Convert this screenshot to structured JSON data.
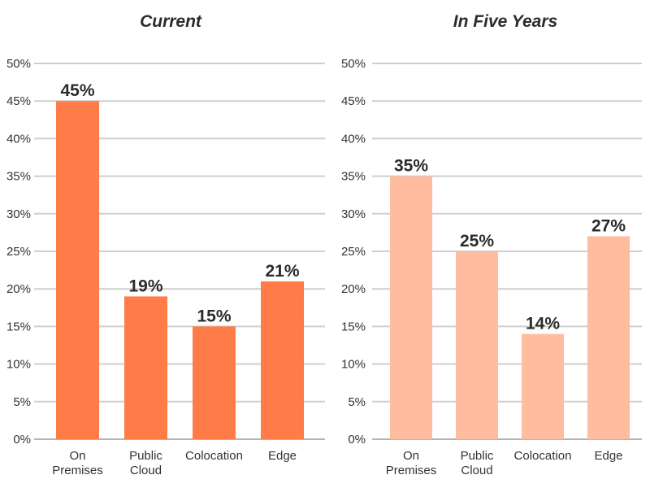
{
  "chart_data": [
    {
      "type": "bar",
      "title": "Current",
      "categories": [
        [
          "On",
          "Premises"
        ],
        [
          "Public",
          "Cloud"
        ],
        [
          "Colocation"
        ],
        [
          "Edge"
        ]
      ],
      "values": [
        45,
        19,
        15,
        21
      ],
      "value_labels": [
        "45%",
        "19%",
        "15%",
        "21%"
      ],
      "ylim": [
        0,
        50
      ],
      "yticks": [
        0,
        5,
        10,
        15,
        20,
        25,
        30,
        35,
        40,
        45,
        50
      ],
      "ytick_labels": [
        "0%",
        "5%",
        "10%",
        "15%",
        "20%",
        "25%",
        "30%",
        "35%",
        "40%",
        "45%",
        "50%"
      ],
      "color": "#ff7b47",
      "grid": true,
      "xlabel": "",
      "ylabel": ""
    },
    {
      "type": "bar",
      "title": "In Five Years",
      "categories": [
        [
          "On",
          "Premises"
        ],
        [
          "Public",
          "Cloud"
        ],
        [
          "Colocation"
        ],
        [
          "Edge"
        ]
      ],
      "values": [
        35,
        25,
        14,
        27
      ],
      "value_labels": [
        "35%",
        "25%",
        "14%",
        "27%"
      ],
      "ylim": [
        0,
        50
      ],
      "yticks": [
        0,
        5,
        10,
        15,
        20,
        25,
        30,
        35,
        40,
        45,
        50
      ],
      "ytick_labels": [
        "0%",
        "5%",
        "10%",
        "15%",
        "20%",
        "25%",
        "30%",
        "35%",
        "40%",
        "45%",
        "50%"
      ],
      "color": "#ffbc9f",
      "grid": true,
      "xlabel": "",
      "ylabel": ""
    }
  ]
}
